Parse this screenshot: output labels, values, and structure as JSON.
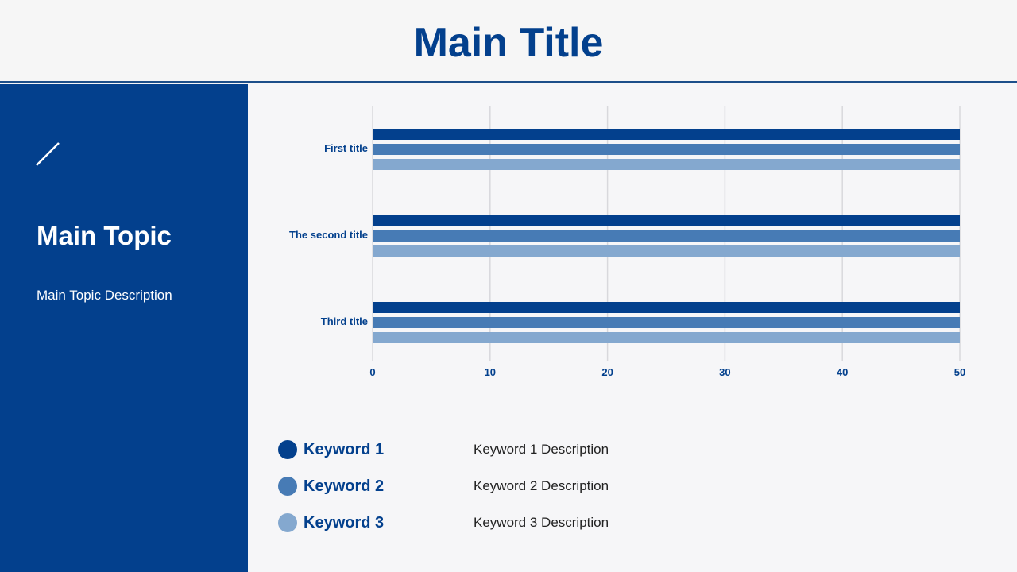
{
  "header": {
    "title": "Main Title"
  },
  "sidebar": {
    "icon": "slash-icon",
    "topic": "Main Topic",
    "description": "Main Topic Description"
  },
  "chart_data": {
    "type": "bar",
    "orientation": "horizontal",
    "categories": [
      "First title",
      "The second title",
      "Third title"
    ],
    "series": [
      {
        "name": "Keyword 1",
        "values": [
          50,
          50,
          50
        ],
        "color": "#03408d"
      },
      {
        "name": "Keyword 2",
        "values": [
          50,
          50,
          50
        ],
        "color": "#477bb5"
      },
      {
        "name": "Keyword 3",
        "values": [
          50,
          50,
          50
        ],
        "color": "#84a8cf"
      }
    ],
    "xlim": [
      0,
      50
    ],
    "xticks": [
      "0",
      "10",
      "20",
      "30",
      "40",
      "50"
    ],
    "grid": true,
    "legend": "bottom"
  },
  "legend": [
    {
      "keyword": "Keyword 1",
      "description": "Keyword 1 Description",
      "color": "#03408d"
    },
    {
      "keyword": "Keyword 2",
      "description": "Keyword 2 Description",
      "color": "#477bb5"
    },
    {
      "keyword": "Keyword 3",
      "description": "Keyword 3 Description",
      "color": "#84a8cf"
    }
  ]
}
